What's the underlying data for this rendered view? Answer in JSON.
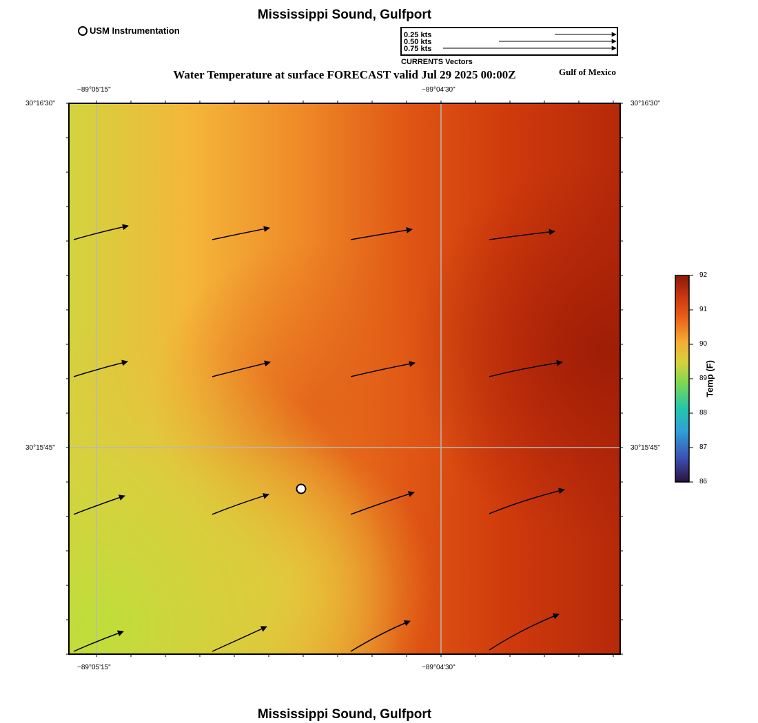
{
  "header": {
    "title": "Mississippi Sound, Gulfport",
    "subtitle": "Water Temperature at surface FORECAST valid Jul 29 2025 00:00Z",
    "region_label": "Gulf of Mexico",
    "footer_title": "Mississippi Sound, Gulfport"
  },
  "legend": {
    "station_label": "USM Instrumentation",
    "vectors_title": "CURRENTS Vectors",
    "vector_scale": [
      "0.25 kts",
      "0.50 kts",
      "0.75 kts"
    ]
  },
  "map": {
    "lon_ticks": [
      "−89°05'15\"",
      "−89°04'30\""
    ],
    "lat_ticks": [
      "30°16'30\"",
      "30°15'45\""
    ],
    "grid": true,
    "station": "USM Instrumentation",
    "current_vectors_visible": true
  },
  "colorbar": {
    "label": "Temp (F)",
    "ticks": [
      "92",
      "91",
      "90",
      "89",
      "88",
      "87",
      "86"
    ],
    "min": 86,
    "max": 92
  },
  "colors": {
    "cool_yellow_green": "#c8dc3c",
    "yellow_orange": "#f5b43a",
    "orange": "#ee7a22",
    "red_orange": "#dc4510",
    "dark_red": "#a82008"
  }
}
